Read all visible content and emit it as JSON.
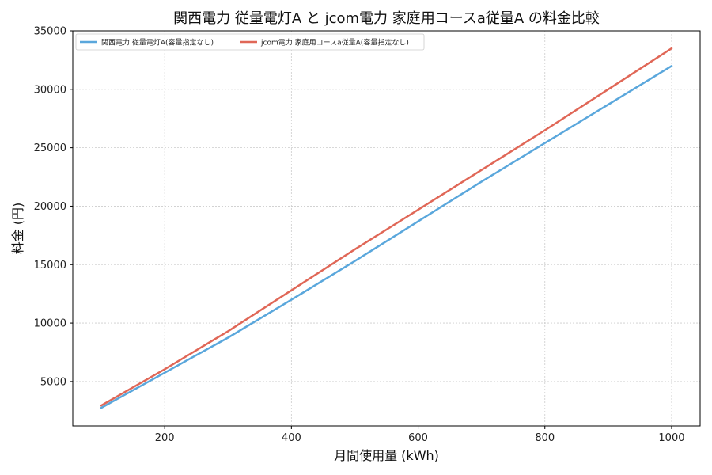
{
  "chart_data": {
    "type": "line",
    "title": "関西電力 従量電灯A と jcom電力 家庭用コースa従量A の料金比較",
    "xlabel": "月間使用量 (kWh)",
    "ylabel": "料金 (円)",
    "xlim": [
      55,
      1045
    ],
    "ylim": [
      1200,
      35000
    ],
    "xticks": [
      200,
      400,
      600,
      800,
      1000
    ],
    "yticks": [
      5000,
      10000,
      15000,
      20000,
      25000,
      30000,
      35000
    ],
    "grid": true,
    "legend_position": "top-left",
    "x": [
      100,
      200,
      300,
      400,
      500,
      600,
      700,
      800,
      900,
      1000
    ],
    "series": [
      {
        "name": "関西電力 従量電灯A(容量指定なし)",
        "color": "#5aa7dc",
        "values": [
          2750,
          5750,
          8750,
          12000,
          15300,
          18700,
          22100,
          25400,
          28700,
          32000
        ]
      },
      {
        "name": "jcom電力 家庭用コースa従量A(容量指定なし)",
        "color": "#e06757",
        "values": [
          2950,
          6050,
          9300,
          12800,
          16300,
          19700,
          23100,
          26500,
          30000,
          33500
        ]
      }
    ]
  }
}
